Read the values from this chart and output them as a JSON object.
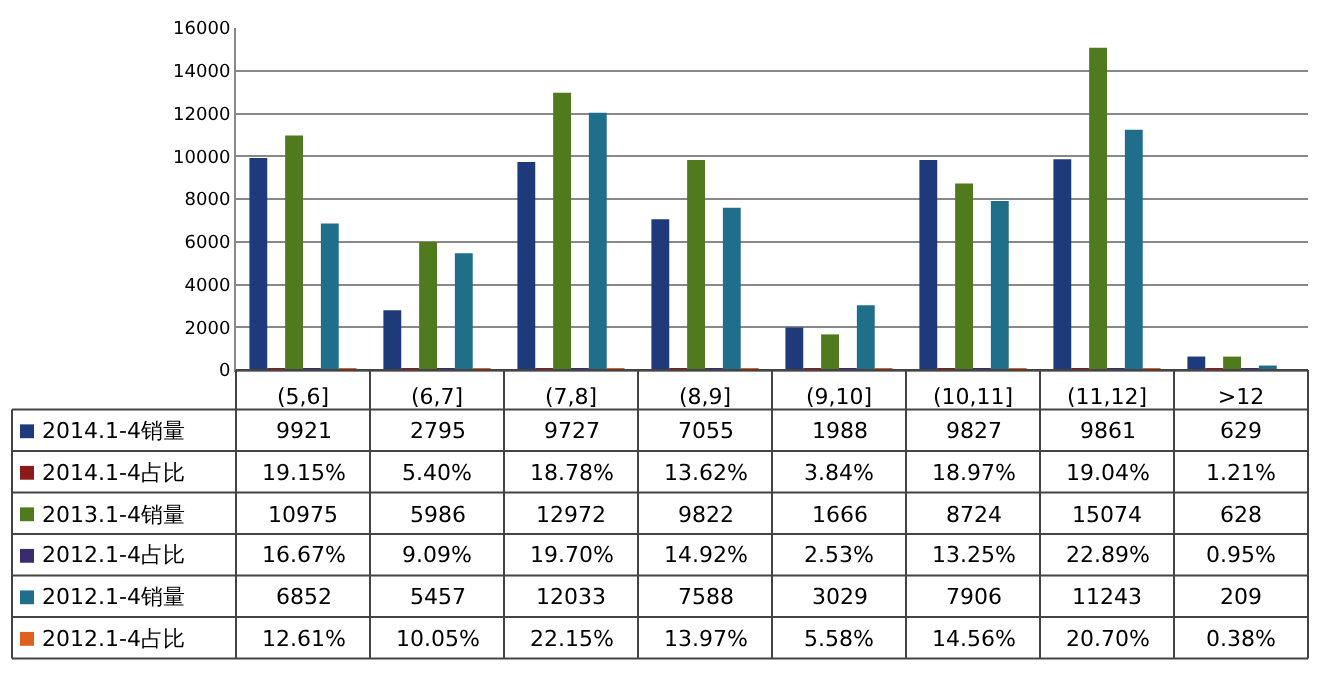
{
  "chart_data": {
    "type": "bar",
    "categories": [
      "(5,6]",
      "(6,7]",
      "(7,8]",
      "(8,9]",
      "(9,10]",
      "(10,11]",
      "(11,12]",
      ">12"
    ],
    "series": [
      {
        "name": "2014.1-4销量",
        "color": "#1f3a7a",
        "values": [
          9921,
          2795,
          9727,
          7055,
          1988,
          9827,
          9861,
          629
        ],
        "value_labels": [
          "9921",
          "2795",
          "9727",
          "7055",
          "1988",
          "9827",
          "9861",
          "629"
        ]
      },
      {
        "name": "2014.1-4占比",
        "color": "#8b1a1a",
        "values": [
          19.15,
          5.4,
          18.78,
          13.62,
          3.84,
          18.97,
          19.04,
          1.21
        ],
        "value_labels": [
          "19.15%",
          "5.40%",
          "18.78%",
          "13.62%",
          "3.84%",
          "18.97%",
          "19.04%",
          "1.21%"
        ]
      },
      {
        "name": "2013.1-4销量",
        "color": "#4f7a1e",
        "values": [
          10975,
          5986,
          12972,
          9822,
          1666,
          8724,
          15074,
          628
        ],
        "value_labels": [
          "10975",
          "5986",
          "12972",
          "9822",
          "1666",
          "8724",
          "15074",
          "628"
        ]
      },
      {
        "name": "2012.1-4占比",
        "color": "#3b2a6e",
        "values": [
          16.67,
          9.09,
          19.7,
          14.92,
          2.53,
          13.25,
          22.89,
          0.95
        ],
        "value_labels": [
          "16.67%",
          "9.09%",
          "19.70%",
          "14.92%",
          "2.53%",
          "13.25%",
          "22.89%",
          "0.95%"
        ]
      },
      {
        "name": "2012.1-4销量",
        "color": "#1f6f8b",
        "values": [
          6852,
          5457,
          12033,
          7588,
          3029,
          7906,
          11243,
          209
        ],
        "value_labels": [
          "6852",
          "5457",
          "12033",
          "7588",
          "3029",
          "7906",
          "11243",
          "209"
        ]
      },
      {
        "name": "2012.1-4占比",
        "color": "#e06020",
        "values": [
          12.61,
          10.05,
          22.15,
          13.97,
          5.58,
          14.56,
          20.7,
          0.38
        ],
        "value_labels": [
          "12.61%",
          "10.05%",
          "22.15%",
          "13.97%",
          "5.58%",
          "14.56%",
          "20.70%",
          "0.38%"
        ]
      }
    ],
    "ylim": [
      0,
      16000
    ],
    "yticks": [
      0,
      2000,
      4000,
      6000,
      8000,
      10000,
      12000,
      14000,
      16000
    ],
    "grid": "y",
    "legend": "bottom left"
  }
}
